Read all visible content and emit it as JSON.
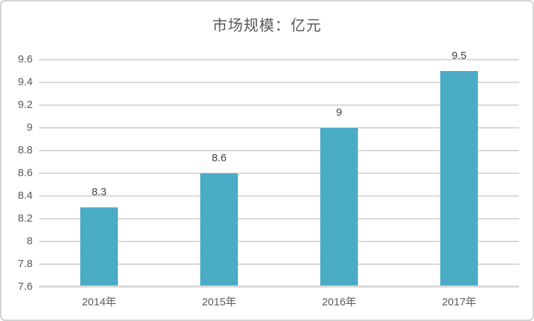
{
  "chart_data": {
    "type": "bar",
    "title": "市场规模：亿元",
    "categories": [
      "2014年",
      "2015年",
      "2016年",
      "2017年"
    ],
    "values": [
      8.3,
      8.6,
      9,
      9.5
    ],
    "data_labels": [
      "8.3",
      "8.6",
      "9",
      "9.5"
    ],
    "yticks": [
      "7.6",
      "7.8",
      "8",
      "8.2",
      "8.4",
      "8.6",
      "8.8",
      "9",
      "9.2",
      "9.4",
      "9.6"
    ],
    "ylim": [
      7.6,
      9.6
    ],
    "ytick_step": 0.2,
    "xlabel": "",
    "ylabel": "",
    "grid": true,
    "legend": "none",
    "colors": {
      "bar": "#4BACC6",
      "gridline": "#D9D9D9",
      "axis_line": "#D9D9D9",
      "title_text": "#595959",
      "tick_text": "#595959",
      "data_label_text": "#404040",
      "frame_border": "#D2D2D2",
      "background": "#FFFFFF"
    }
  }
}
